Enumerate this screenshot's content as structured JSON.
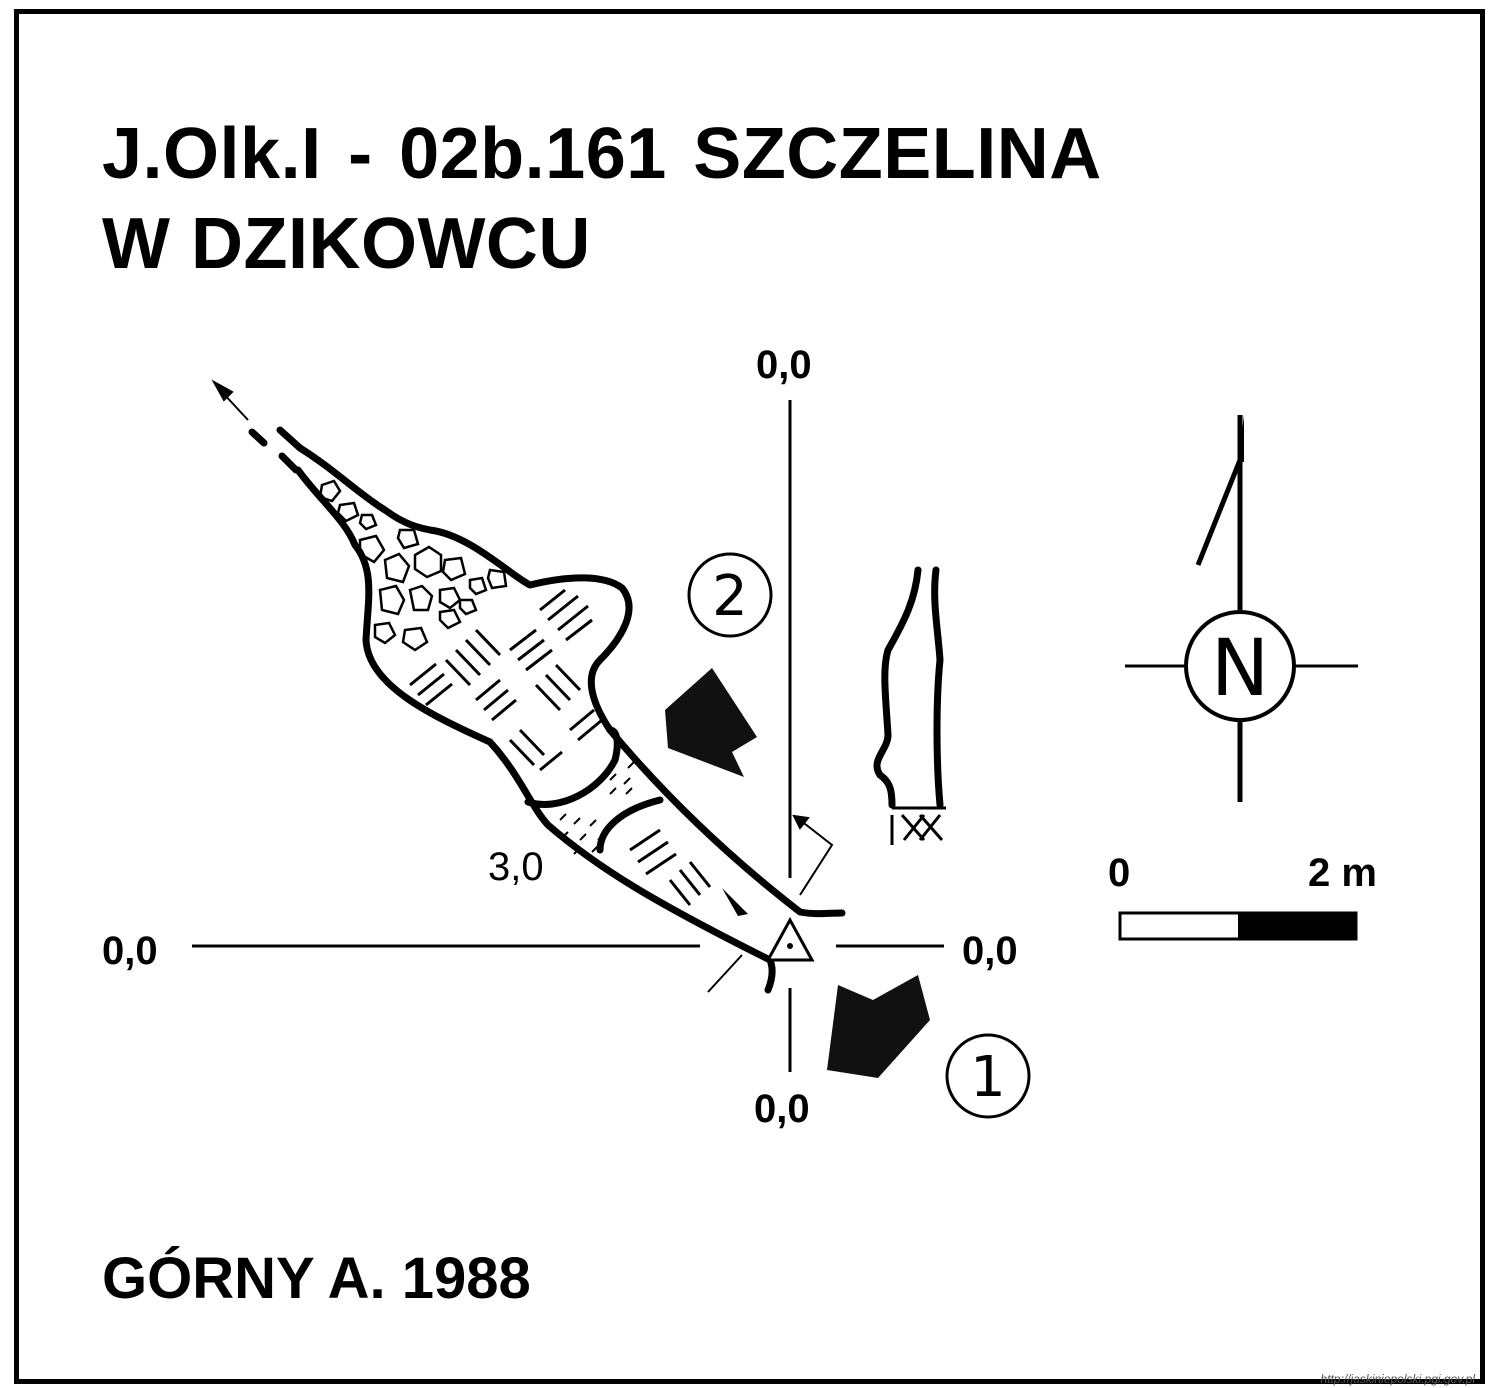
{
  "title": {
    "line1": "J.Olk.I - 02b.161  SZCZELINA",
    "line2": "W DZIKOWCU"
  },
  "author": "GÓRNY A. 1988",
  "credit": "http://jaskiniepolski.pgi.gov.pl",
  "grid_labels": {
    "top": "0,0",
    "left": "0,0",
    "right": "0,0",
    "bottom": "0,0"
  },
  "depth_label": "3,0",
  "entrance_markers": {
    "one": "1",
    "two": "2"
  },
  "compass": {
    "letter": "N"
  },
  "scale_bar": {
    "start_label": "0",
    "end_label": "2 m"
  }
}
